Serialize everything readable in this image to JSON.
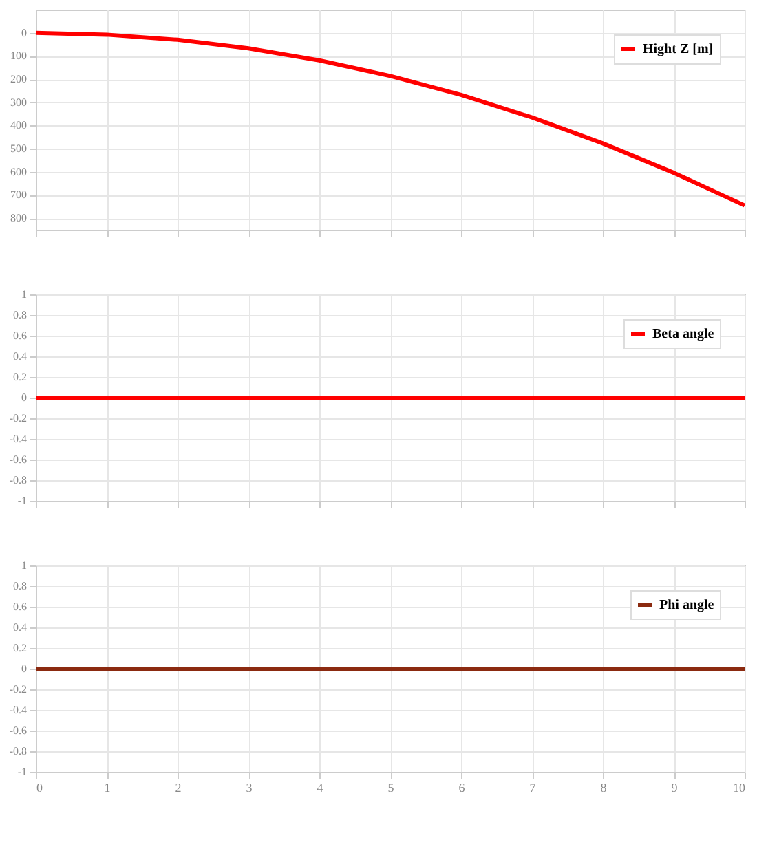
{
  "chart_data": [
    {
      "type": "line",
      "x": [
        0,
        1,
        2,
        3,
        4,
        5,
        6,
        7,
        8,
        9,
        10
      ],
      "series": [
        {
          "name": "Hight Z [m]",
          "color": "#ff0000",
          "values": [
            0,
            8,
            30,
            67,
            119,
            186,
            268,
            365,
            477,
            604,
            745
          ]
        }
      ],
      "xlim": [
        0,
        10
      ],
      "xticks": [
        0,
        1,
        2,
        3,
        4,
        5,
        6,
        7,
        8,
        9,
        10
      ],
      "ylim": [
        850,
        -100
      ],
      "yticks": [
        0,
        100,
        200,
        300,
        400,
        500,
        600,
        700,
        800
      ],
      "grid": true,
      "legend": "top right",
      "tick_labels": "y"
    },
    {
      "type": "line",
      "x": [
        0,
        10
      ],
      "series": [
        {
          "name": "Beta angle",
          "color": "#ff0000",
          "values": [
            0,
            0
          ]
        }
      ],
      "xlim": [
        0,
        10
      ],
      "xticks": [
        0,
        1,
        2,
        3,
        4,
        5,
        6,
        7,
        8,
        9,
        10
      ],
      "ylim": [
        -1,
        1
      ],
      "yticks": [
        -1,
        -0.8,
        -0.6,
        -0.4,
        -0.2,
        0,
        0.2,
        0.4,
        0.6,
        0.8,
        1
      ],
      "grid": true,
      "legend": "top right",
      "tick_labels": "y"
    },
    {
      "type": "line",
      "x": [
        0,
        10
      ],
      "series": [
        {
          "name": "Phi angle",
          "color": "#8b2a10",
          "values": [
            0,
            0
          ]
        }
      ],
      "xlim": [
        0,
        10
      ],
      "xticks": [
        0,
        1,
        2,
        3,
        4,
        5,
        6,
        7,
        8,
        9,
        10
      ],
      "ylim": [
        -1,
        1
      ],
      "yticks": [
        -1,
        -0.8,
        -0.6,
        -0.4,
        -0.2,
        0,
        0.2,
        0.4,
        0.6,
        0.8,
        1
      ],
      "grid": true,
      "legend": "top right"
    }
  ]
}
